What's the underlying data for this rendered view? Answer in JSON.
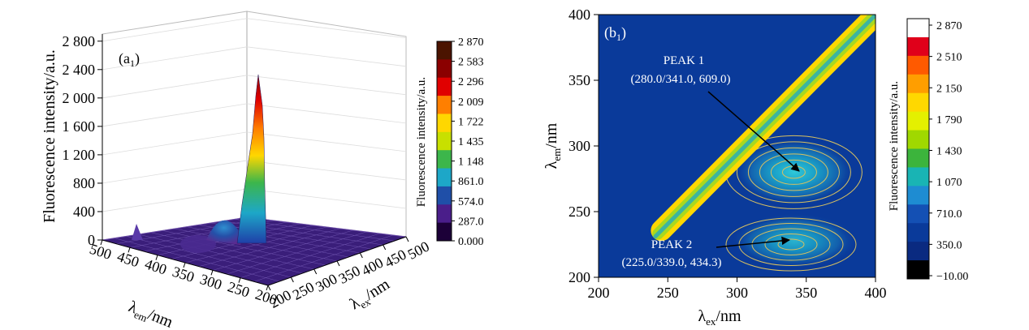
{
  "chart_data": [
    {
      "panel_label": "(a",
      "panel_label_sub": "1",
      "panel_label_end": ")",
      "type": "surface3d",
      "zlabel": "Fluorescence intensity/a.u.",
      "xlabel_main": "λ",
      "xlabel_sub": "ex",
      "xlabel_unit": "/nm",
      "ylabel_main": "λ",
      "ylabel_sub": "em",
      "ylabel_unit": "/nm",
      "z_ticks": [
        "0",
        "400",
        "800",
        "1 200",
        "1 600",
        "2 000",
        "2 400",
        "2 800"
      ],
      "z_tick_values": [
        0,
        400,
        800,
        1200,
        1600,
        2000,
        2400,
        2800
      ],
      "zlim": [
        0,
        2900
      ],
      "ex_ticks": [
        "200",
        "250",
        "300",
        "350",
        "400",
        "450",
        "500"
      ],
      "ex_tick_values": [
        200,
        250,
        300,
        350,
        400,
        450,
        500
      ],
      "em_ticks": [
        "500",
        "450",
        "400",
        "350",
        "300",
        "250",
        "200"
      ],
      "em_tick_values": [
        500,
        450,
        400,
        350,
        300,
        250,
        200
      ],
      "colorbar": {
        "title": "Fluorescence intensity/a.u.",
        "ticks": [
          "2 870",
          "2 583",
          "2 296",
          "2 009",
          "1 722",
          "1 435",
          "1 148",
          "861.0",
          "574.0",
          "287.0",
          "0.000"
        ],
        "values": [
          2870,
          2583,
          2296,
          2009,
          1722,
          1435,
          1148,
          861,
          574,
          287,
          0
        ],
        "colors": [
          "#4b1400",
          "#8b0000",
          "#e00000",
          "#ff7f00",
          "#ffd700",
          "#c8e000",
          "#3cb64b",
          "#1da7c8",
          "#1f4fa8",
          "#4a1e8a",
          "#1c0038"
        ]
      },
      "ridge_peak": 2430,
      "peak1": {
        "ex": 280.0,
        "em": 341.0,
        "intensity": 609.0
      },
      "peak2": {
        "ex": 225.0,
        "em": 339.0,
        "intensity": 434.3
      }
    },
    {
      "panel_label": "(b",
      "panel_label_sub": "1",
      "panel_label_end": ")",
      "type": "heatmap",
      "xlabel_main": "λ",
      "xlabel_sub": "ex",
      "xlabel_unit": "/nm",
      "ylabel_main": "λ",
      "ylabel_sub": "em",
      "ylabel_unit": "/nm",
      "xlim": [
        200,
        400
      ],
      "ylim": [
        200,
        400
      ],
      "x_ticks": [
        "200",
        "250",
        "300",
        "350",
        "400"
      ],
      "x_tick_values": [
        200,
        250,
        300,
        350,
        400
      ],
      "y_ticks": [
        "200",
        "250",
        "300",
        "350",
        "400"
      ],
      "y_tick_values": [
        200,
        250,
        300,
        350,
        400
      ],
      "background_color": "#0a3a9a",
      "peaks": [
        {
          "name": "PEAK 1",
          "label": "(280.0/341.0, 609.0)",
          "x": 341.0,
          "y": 280.0,
          "intensity": 609.0
        },
        {
          "name": "PEAK 2",
          "label": "(225.0/339.0, 434.3)",
          "x": 339.0,
          "y": 225.0,
          "intensity": 434.3
        }
      ],
      "colorbar": {
        "title": "Fluorescence intensity/a.u.",
        "ticks": [
          "2 870",
          "2 510",
          "2 150",
          "1 790",
          "1 430",
          "1 070",
          "710.0",
          "350.0",
          "−10.00"
        ],
        "values": [
          2870,
          2510,
          2150,
          1790,
          1430,
          1070,
          710,
          350,
          -10
        ],
        "vmin": -10,
        "vmax": 2870,
        "colors": [
          "#ffffff",
          "#e0001a",
          "#ff5a00",
          "#ff9e00",
          "#ffd800",
          "#e4f000",
          "#a0d800",
          "#3cb43c",
          "#19b4b4",
          "#1e8cd2",
          "#1450b4",
          "#0a3a9a",
          "#0a2a80",
          "#000000"
        ]
      }
    }
  ]
}
